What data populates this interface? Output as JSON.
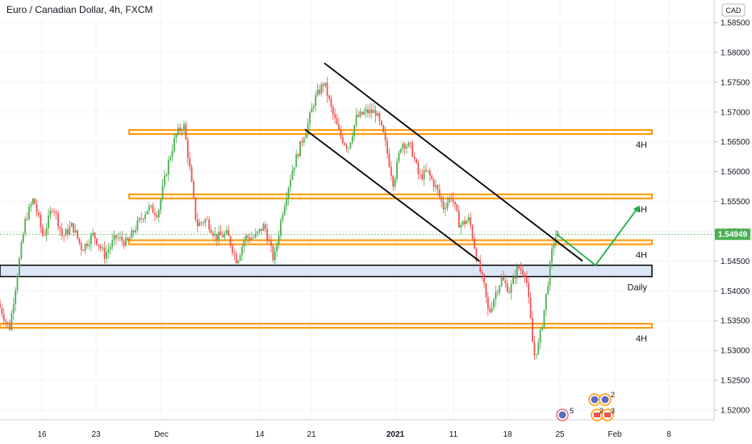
{
  "header": {
    "title": "Euro / Canadian Dollar, 4h, FXCM"
  },
  "currency_badge": "CAD",
  "last_price_label": "1.54949",
  "event_icons": [
    {
      "name": "event-icon-earth",
      "count": "5"
    },
    {
      "name": "event-icon-earth",
      "count": "2"
    },
    {
      "name": "event-icon-flag",
      "count": "2"
    },
    {
      "name": "event-icon-flag",
      "count": "3"
    }
  ],
  "colors": {
    "up": "#26a69a",
    "up_candle": "#4caf50",
    "down": "#ef5350",
    "zone_orange": "#ff9800",
    "zone_blue_fill": "#dbe7f7",
    "projection": "#22b04a",
    "last_price": "#4caf50"
  },
  "chart_data": {
    "type": "candlestick",
    "title": "Euro / Canadian Dollar, 4h, FXCM",
    "x_ticks": [
      {
        "label": "16",
        "t": 52
      },
      {
        "label": "23",
        "t": 119
      },
      {
        "label": "Dec",
        "t": 200
      },
      {
        "label": "14",
        "t": 322
      },
      {
        "label": "21",
        "t": 386
      },
      {
        "label": "2021",
        "t": 490,
        "bold": true
      },
      {
        "label": "11",
        "t": 562
      },
      {
        "label": "18",
        "t": 629
      },
      {
        "label": "25",
        "t": 694
      },
      {
        "label": "Feb",
        "t": 762
      },
      {
        "label": "8",
        "t": 829
      }
    ],
    "y_ticks": [
      "1.58500",
      "1.58000",
      "1.57500",
      "1.57000",
      "1.56500",
      "1.56000",
      "1.55500",
      "1.55000",
      "1.54500",
      "1.54000",
      "1.53500",
      "1.53000",
      "1.52500",
      "1.52000"
    ],
    "ylim": [
      1.5175,
      1.5895
    ],
    "last_price": 1.54949,
    "price_path": [
      [
        0,
        1.538
      ],
      [
        14,
        1.5335
      ],
      [
        24,
        1.543
      ],
      [
        34,
        1.552
      ],
      [
        44,
        1.5555
      ],
      [
        56,
        1.549
      ],
      [
        68,
        1.5545
      ],
      [
        80,
        1.549
      ],
      [
        92,
        1.551
      ],
      [
        104,
        1.547
      ],
      [
        118,
        1.5495
      ],
      [
        132,
        1.546
      ],
      [
        146,
        1.549
      ],
      [
        160,
        1.548
      ],
      [
        172,
        1.551
      ],
      [
        186,
        1.554
      ],
      [
        198,
        1.553
      ],
      [
        210,
        1.561
      ],
      [
        220,
        1.566
      ],
      [
        230,
        1.568
      ],
      [
        238,
        1.56
      ],
      [
        246,
        1.551
      ],
      [
        258,
        1.552
      ],
      [
        270,
        1.549
      ],
      [
        284,
        1.5495
      ],
      [
        296,
        1.545
      ],
      [
        306,
        1.549
      ],
      [
        318,
        1.549
      ],
      [
        330,
        1.551
      ],
      [
        342,
        1.545
      ],
      [
        352,
        1.553
      ],
      [
        364,
        1.56
      ],
      [
        376,
        1.565
      ],
      [
        384,
        1.568
      ],
      [
        392,
        1.572
      ],
      [
        404,
        1.575
      ],
      [
        414,
        1.57
      ],
      [
        424,
        1.566
      ],
      [
        434,
        1.564
      ],
      [
        444,
        1.569
      ],
      [
        456,
        1.57
      ],
      [
        468,
        1.57
      ],
      [
        478,
        1.566
      ],
      [
        490,
        1.558
      ],
      [
        500,
        1.565
      ],
      [
        512,
        1.564
      ],
      [
        522,
        1.559
      ],
      [
        532,
        1.56
      ],
      [
        544,
        1.557
      ],
      [
        552,
        1.554
      ],
      [
        562,
        1.556
      ],
      [
        572,
        1.551
      ],
      [
        584,
        1.552
      ],
      [
        594,
        1.545
      ],
      [
        602,
        1.541
      ],
      [
        608,
        1.536
      ],
      [
        616,
        1.5395
      ],
      [
        624,
        1.542
      ],
      [
        634,
        1.54
      ],
      [
        644,
        1.544
      ],
      [
        654,
        1.543
      ],
      [
        660,
        1.535
      ],
      [
        664,
        1.529
      ],
      [
        670,
        1.531
      ],
      [
        676,
        1.536
      ],
      [
        682,
        1.542
      ],
      [
        688,
        1.548
      ],
      [
        692,
        1.5495
      ]
    ],
    "horizontal_zones": [
      {
        "name": "zone-4h-top",
        "color": "orange",
        "y_low": 1.5663,
        "y_high": 1.567,
        "t_start": 160,
        "t_end": 808,
        "label": "4H"
      },
      {
        "name": "zone-4h-mid",
        "color": "orange",
        "y_low": 1.5555,
        "y_high": 1.5562,
        "t_start": 160,
        "t_end": 808,
        "label": "4H"
      },
      {
        "name": "zone-4h-low",
        "color": "orange",
        "y_low": 1.5478,
        "y_high": 1.5485,
        "t_start": 160,
        "t_end": 808,
        "label": "4H"
      },
      {
        "name": "zone-daily",
        "color": "blue",
        "y_low": 1.5424,
        "y_high": 1.5443,
        "t_start": 0,
        "t_end": 808,
        "label": "Daily"
      },
      {
        "name": "zone-4h-bottom",
        "color": "orange",
        "y_low": 1.5338,
        "y_high": 1.5345,
        "t_start": 0,
        "t_end": 808,
        "label": "4H"
      }
    ],
    "trend_lines": [
      {
        "name": "channel-upper-line",
        "from": [
          402,
          1.5782
        ],
        "to": [
          722,
          1.545
        ]
      },
      {
        "name": "channel-lower-line",
        "from": [
          378,
          1.5671
        ],
        "to": [
          594,
          1.545
        ]
      }
    ],
    "projection_path": [
      [
        690,
        1.5495
      ],
      [
        738,
        1.5443
      ],
      [
        792,
        1.5542
      ]
    ]
  }
}
